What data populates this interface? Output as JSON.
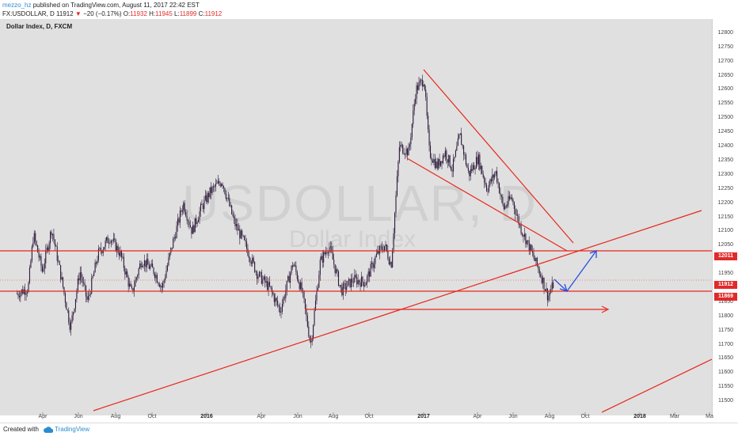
{
  "header": {
    "author": "mezzo_hz",
    "published_text": " published on TradingView.com, August 11, 2017 22:42 EST",
    "symbol": "FX:USDOLLAR, D",
    "last": "11912",
    "change": "−20 (−0.17%)",
    "open_label": "O:",
    "open_value": "11932",
    "high_label": "H:",
    "high_value": "11945",
    "low_label": "L:",
    "low_value": "11899",
    "close_label": "C:",
    "close_value": "11912"
  },
  "chart": {
    "title": "Dollar Index, D, FXCM",
    "watermark_symbol": "USDOLLAR, D",
    "watermark_name": "Dollar Index",
    "colors": {
      "background": "#e0e0e0",
      "candle": "#2c1a3a",
      "trendline": "#e8261c",
      "projection": "#2a4fe0",
      "label_bg": "#e02a2a"
    }
  },
  "chart_data": {
    "type": "candlestick",
    "y_range": [
      11450,
      12850
    ],
    "price_ticks": [
      "12800",
      "12750",
      "12700",
      "12650",
      "12600",
      "12550",
      "12500",
      "12450",
      "12400",
      "12350",
      "12300",
      "12250",
      "12200",
      "12150",
      "12100",
      "12050",
      "12000",
      "11950",
      "11900",
      "11850",
      "11800",
      "11750",
      "11700",
      "11650",
      "11600",
      "11550",
      "11500"
    ],
    "price_labels": [
      {
        "text": "12011",
        "value": 12011
      },
      {
        "text": "11912",
        "value": 11912
      },
      {
        "text": "11869",
        "value": 11869
      }
    ],
    "time_ticks": [
      {
        "label": "Apr",
        "bold": false
      },
      {
        "label": "Jun",
        "bold": false
      },
      {
        "label": "Aug",
        "bold": false
      },
      {
        "label": "Oct",
        "bold": false
      },
      {
        "label": "2016",
        "bold": true
      },
      {
        "label": "Apr",
        "bold": false
      },
      {
        "label": "Jun",
        "bold": false
      },
      {
        "label": "Aug",
        "bold": false
      },
      {
        "label": "Oct",
        "bold": false
      },
      {
        "label": "2017",
        "bold": true
      },
      {
        "label": "Apr",
        "bold": false
      },
      {
        "label": "Jun",
        "bold": false
      },
      {
        "label": "Aug",
        "bold": false
      },
      {
        "label": "Oct",
        "bold": false
      },
      {
        "label": "2018",
        "bold": true
      },
      {
        "label": "Mar",
        "bold": false
      },
      {
        "label": "Ma",
        "bold": false
      }
    ],
    "price_path": [
      {
        "t": "2015-02-10",
        "v": 11880
      },
      {
        "t": "2015-03-01",
        "v": 11900
      },
      {
        "t": "2015-03-10",
        "v": 12090
      },
      {
        "t": "2015-03-25",
        "v": 11960
      },
      {
        "t": "2015-04-10",
        "v": 12110
      },
      {
        "t": "2015-04-25",
        "v": 11950
      },
      {
        "t": "2015-05-12",
        "v": 11760
      },
      {
        "t": "2015-05-28",
        "v": 11960
      },
      {
        "t": "2015-06-10",
        "v": 11850
      },
      {
        "t": "2015-06-28",
        "v": 12020
      },
      {
        "t": "2015-07-18",
        "v": 12080
      },
      {
        "t": "2015-08-05",
        "v": 12020
      },
      {
        "t": "2015-08-24",
        "v": 11880
      },
      {
        "t": "2015-09-10",
        "v": 12000
      },
      {
        "t": "2015-10-01",
        "v": 11960
      },
      {
        "t": "2015-10-15",
        "v": 11900
      },
      {
        "t": "2015-11-01",
        "v": 12050
      },
      {
        "t": "2015-11-20",
        "v": 12200
      },
      {
        "t": "2015-12-05",
        "v": 12100
      },
      {
        "t": "2015-12-20",
        "v": 12180
      },
      {
        "t": "2016-01-05",
        "v": 12240
      },
      {
        "t": "2016-01-25",
        "v": 12280
      },
      {
        "t": "2016-02-15",
        "v": 12130
      },
      {
        "t": "2016-03-05",
        "v": 12050
      },
      {
        "t": "2016-03-25",
        "v": 11950
      },
      {
        "t": "2016-04-15",
        "v": 11900
      },
      {
        "t": "2016-05-03",
        "v": 11820
      },
      {
        "t": "2016-05-25",
        "v": 11990
      },
      {
        "t": "2016-06-10",
        "v": 11880
      },
      {
        "t": "2016-06-24",
        "v": 11700
      },
      {
        "t": "2016-07-10",
        "v": 11990
      },
      {
        "t": "2016-07-25",
        "v": 12050
      },
      {
        "t": "2016-08-15",
        "v": 11890
      },
      {
        "t": "2016-09-05",
        "v": 11930
      },
      {
        "t": "2016-09-25",
        "v": 11920
      },
      {
        "t": "2016-10-15",
        "v": 12020
      },
      {
        "t": "2016-10-28",
        "v": 12050
      },
      {
        "t": "2016-11-08",
        "v": 11980
      },
      {
        "t": "2016-11-22",
        "v": 12400
      },
      {
        "t": "2016-12-08",
        "v": 12380
      },
      {
        "t": "2016-12-20",
        "v": 12600
      },
      {
        "t": "2017-01-03",
        "v": 12640
      },
      {
        "t": "2017-01-12",
        "v": 12380
      },
      {
        "t": "2017-01-25",
        "v": 12330
      },
      {
        "t": "2017-02-08",
        "v": 12380
      },
      {
        "t": "2017-02-20",
        "v": 12320
      },
      {
        "t": "2017-03-05",
        "v": 12440
      },
      {
        "t": "2017-03-20",
        "v": 12300
      },
      {
        "t": "2017-04-05",
        "v": 12360
      },
      {
        "t": "2017-04-20",
        "v": 12250
      },
      {
        "t": "2017-05-05",
        "v": 12310
      },
      {
        "t": "2017-05-18",
        "v": 12180
      },
      {
        "t": "2017-06-01",
        "v": 12220
      },
      {
        "t": "2017-06-15",
        "v": 12120
      },
      {
        "t": "2017-06-28",
        "v": 12060
      },
      {
        "t": "2017-07-10",
        "v": 12000
      },
      {
        "t": "2017-07-22",
        "v": 11940
      },
      {
        "t": "2017-08-02",
        "v": 11869
      },
      {
        "t": "2017-08-11",
        "v": 11912
      }
    ]
  },
  "footer": {
    "created_with": "Created with",
    "brand": "TradingView"
  }
}
